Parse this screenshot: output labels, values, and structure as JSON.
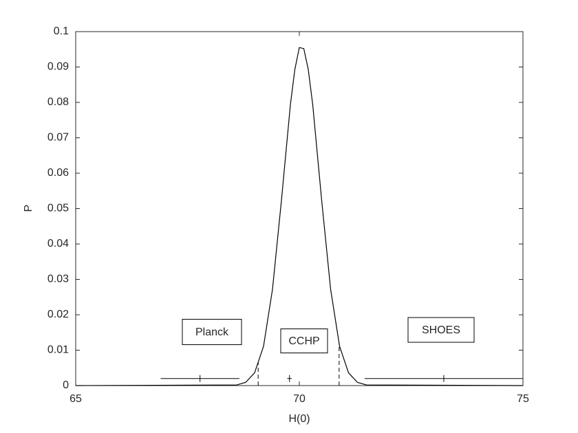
{
  "chart_data": {
    "type": "line",
    "xlabel": "H(0)",
    "ylabel": "P",
    "color": "#000000",
    "x": [
      65,
      68.6,
      68.8,
      69.0,
      69.2,
      69.4,
      69.6,
      69.8,
      69.9,
      70.0,
      70.1,
      70.2,
      70.3,
      70.5,
      70.7,
      70.9,
      71.1,
      71.3,
      71.5,
      75
    ],
    "values": [
      0,
      0.00018,
      0.0009,
      0.0036,
      0.0111,
      0.0272,
      0.0523,
      0.0793,
      0.0893,
      0.0955,
      0.0952,
      0.0893,
      0.0793,
      0.0523,
      0.0272,
      0.0111,
      0.0036,
      0.0009,
      0.00018,
      0
    ],
    "xlim": [
      65,
      75
    ],
    "xticks": [
      65,
      70,
      75
    ],
    "ylim": [
      0,
      0.1
    ],
    "yticks": [
      0,
      0.01,
      0.02,
      0.03,
      0.04,
      0.05,
      0.06,
      0.07,
      0.08,
      0.09,
      0.1
    ],
    "dashed_lines": [
      69.08,
      70.89
    ],
    "intervals": [
      {
        "label": "Planck",
        "x": 67.78,
        "xerr": 0.88,
        "y": 0.002
      },
      {
        "label": "CCHP",
        "x": 69.78,
        "xerr": 0.05,
        "y": 0.002
      },
      {
        "label": "SHOES",
        "x": 73.23,
        "xerr": 1.77,
        "y": 0.002
      }
    ]
  }
}
